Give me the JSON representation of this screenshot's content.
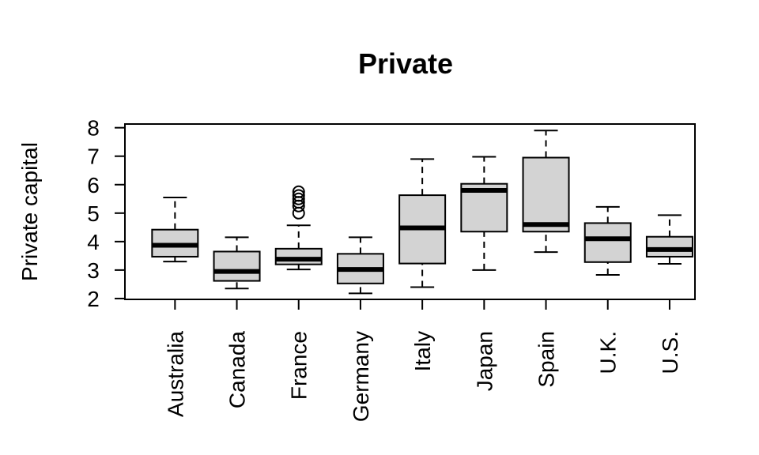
{
  "chart_data": {
    "type": "boxplot",
    "title": "Private",
    "xlabel": "",
    "ylabel": "Private capital",
    "ylim": [
      1.97,
      8.13
    ],
    "yticks": [
      2,
      3,
      4,
      5,
      6,
      7,
      8
    ],
    "grid": false,
    "legend": "none",
    "box_color": "#d3d3d3",
    "categories": [
      "Australia",
      "Canada",
      "France",
      "Germany",
      "Italy",
      "Japan",
      "Spain",
      "U.K.",
      "U.S."
    ],
    "boxes": [
      {
        "category": "Australia",
        "whisker_low": 3.3,
        "q1": 3.47,
        "median": 3.87,
        "q3": 4.42,
        "whisker_high": 5.55,
        "outliers": []
      },
      {
        "category": "Canada",
        "whisker_low": 2.35,
        "q1": 2.62,
        "median": 2.95,
        "q3": 3.65,
        "whisker_high": 4.15,
        "outliers": []
      },
      {
        "category": "France",
        "whisker_low": 3.02,
        "q1": 3.2,
        "median": 3.38,
        "q3": 3.75,
        "whisker_high": 4.57,
        "outliers": [
          5.0,
          5.25,
          5.38,
          5.5,
          5.62,
          5.75
        ]
      },
      {
        "category": "Germany",
        "whisker_low": 2.18,
        "q1": 2.53,
        "median": 3.02,
        "q3": 3.57,
        "whisker_high": 4.15,
        "outliers": []
      },
      {
        "category": "Italy",
        "whisker_low": 2.4,
        "q1": 3.23,
        "median": 4.48,
        "q3": 5.63,
        "whisker_high": 6.9,
        "outliers": []
      },
      {
        "category": "Japan",
        "whisker_low": 3.0,
        "q1": 4.35,
        "median": 5.8,
        "q3": 6.03,
        "whisker_high": 6.98,
        "outliers": []
      },
      {
        "category": "Spain",
        "whisker_low": 3.63,
        "q1": 4.35,
        "median": 4.6,
        "q3": 6.95,
        "whisker_high": 7.9,
        "outliers": []
      },
      {
        "category": "U.K.",
        "whisker_low": 2.83,
        "q1": 3.28,
        "median": 4.1,
        "q3": 4.65,
        "whisker_high": 5.22,
        "outliers": []
      },
      {
        "category": "U.S.",
        "whisker_low": 3.22,
        "q1": 3.47,
        "median": 3.72,
        "q3": 4.17,
        "whisker_high": 4.93,
        "outliers": []
      }
    ]
  }
}
